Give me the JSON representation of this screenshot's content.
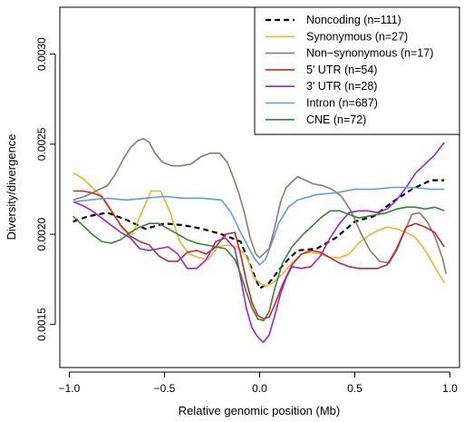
{
  "chart_data": {
    "type": "line",
    "title": "",
    "xlabel": "Relative genomic position (Mb)",
    "ylabel": "Diversity/divergence",
    "xlim": [
      -1.05,
      1.05
    ],
    "ylim": [
      0.00126,
      0.00326
    ],
    "xticks": [
      -1.0,
      -0.5,
      0.0,
      0.5,
      1.0
    ],
    "xtick_labels": [
      "−1.0",
      "−0.5",
      "0.0",
      "0.5",
      "1.0"
    ],
    "yticks": [
      0.0015,
      0.002,
      0.0025,
      0.003
    ],
    "ytick_labels": [
      "0.0015",
      "0.0020",
      "0.0025",
      "0.0030"
    ],
    "grid": false,
    "legend_position": "top-right",
    "series": [
      {
        "name": "Noncoding (n=111)",
        "color": "#000000",
        "dashed": true,
        "x": [
          -0.98,
          -0.9,
          -0.8,
          -0.7,
          -0.6,
          -0.5,
          -0.4,
          -0.3,
          -0.2,
          -0.1,
          -0.05,
          0.0,
          0.05,
          0.1,
          0.15,
          0.2,
          0.3,
          0.4,
          0.5,
          0.6,
          0.7,
          0.8,
          0.9,
          0.97
        ],
        "y": [
          0.00207,
          0.0021,
          0.00212,
          0.00208,
          0.00203,
          0.00206,
          0.00205,
          0.00203,
          0.002,
          0.00196,
          0.00183,
          0.0017,
          0.00173,
          0.0018,
          0.00186,
          0.00191,
          0.00192,
          0.00198,
          0.00207,
          0.0021,
          0.00218,
          0.00225,
          0.0023,
          0.0023
        ]
      },
      {
        "name": "Synonymous (n=27)",
        "color": "#f2b32a",
        "dashed": false,
        "x": [
          -0.98,
          -0.93,
          -0.88,
          -0.82,
          -0.77,
          -0.72,
          -0.67,
          -0.62,
          -0.57,
          -0.52,
          -0.47,
          -0.42,
          -0.37,
          -0.32,
          -0.27,
          -0.22,
          -0.17,
          -0.12,
          -0.07,
          -0.03,
          0.0,
          0.03,
          0.07,
          0.12,
          0.17,
          0.22,
          0.27,
          0.32,
          0.37,
          0.42,
          0.47,
          0.52,
          0.57,
          0.62,
          0.67,
          0.72,
          0.77,
          0.82,
          0.87,
          0.92,
          0.97
        ],
        "y": [
          0.00234,
          0.00231,
          0.00226,
          0.0022,
          0.00212,
          0.00203,
          0.002,
          0.00212,
          0.00224,
          0.00224,
          0.00212,
          0.00196,
          0.00189,
          0.00187,
          0.00186,
          0.00193,
          0.00194,
          0.00193,
          0.00188,
          0.00176,
          0.00173,
          0.00171,
          0.00173,
          0.00178,
          0.00184,
          0.00189,
          0.0019,
          0.00189,
          0.00187,
          0.00187,
          0.00189,
          0.00195,
          0.00199,
          0.00202,
          0.00204,
          0.00203,
          0.00201,
          0.00198,
          0.00191,
          0.00182,
          0.00173
        ]
      },
      {
        "name": "Non−synonymous (n=17)",
        "color": "#8c7b6b",
        "dashed": false,
        "x": [
          -0.98,
          -0.92,
          -0.86,
          -0.8,
          -0.76,
          -0.72,
          -0.68,
          -0.64,
          -0.61,
          -0.58,
          -0.55,
          -0.51,
          -0.46,
          -0.41,
          -0.36,
          -0.31,
          -0.26,
          -0.21,
          -0.17,
          -0.14,
          -0.11,
          -0.08,
          -0.05,
          -0.02,
          0.0,
          0.02,
          0.05,
          0.08,
          0.11,
          0.14,
          0.17,
          0.2,
          0.24,
          0.28,
          0.33,
          0.38,
          0.43,
          0.48,
          0.53,
          0.58,
          0.63,
          0.68,
          0.72,
          0.76,
          0.8,
          0.84,
          0.88,
          0.92,
          0.96,
          0.98
        ],
        "y": [
          0.00219,
          0.00221,
          0.00224,
          0.00227,
          0.00233,
          0.00241,
          0.00248,
          0.00252,
          0.00253,
          0.00251,
          0.00245,
          0.0024,
          0.00238,
          0.00238,
          0.00239,
          0.00243,
          0.00245,
          0.00245,
          0.0024,
          0.00232,
          0.00223,
          0.00212,
          0.00198,
          0.00189,
          0.00187,
          0.00189,
          0.00192,
          0.00204,
          0.00218,
          0.00226,
          0.00229,
          0.00232,
          0.0023,
          0.00228,
          0.00227,
          0.00225,
          0.00221,
          0.00213,
          0.00201,
          0.00191,
          0.00185,
          0.00184,
          0.00191,
          0.00201,
          0.00211,
          0.00212,
          0.00207,
          0.00199,
          0.00187,
          0.00178
        ]
      },
      {
        "name": "5' UTR (n=54)",
        "color": "#c4282a",
        "dashed": false,
        "x": [
          -0.98,
          -0.93,
          -0.88,
          -0.83,
          -0.78,
          -0.73,
          -0.68,
          -0.63,
          -0.58,
          -0.53,
          -0.48,
          -0.43,
          -0.38,
          -0.33,
          -0.28,
          -0.23,
          -0.18,
          -0.13,
          -0.1,
          -0.07,
          -0.04,
          -0.01,
          0.02,
          0.05,
          0.08,
          0.12,
          0.17,
          0.22,
          0.27,
          0.32,
          0.37,
          0.42,
          0.47,
          0.52,
          0.57,
          0.62,
          0.67,
          0.72,
          0.77,
          0.82,
          0.87,
          0.92,
          0.97
        ],
        "y": [
          0.00224,
          0.00224,
          0.00223,
          0.00221,
          0.00213,
          0.00205,
          0.00199,
          0.00196,
          0.00194,
          0.00188,
          0.00185,
          0.00185,
          0.0019,
          0.00191,
          0.00189,
          0.00193,
          0.002,
          0.00201,
          0.00189,
          0.00174,
          0.00162,
          0.00155,
          0.00153,
          0.00154,
          0.00161,
          0.00172,
          0.00183,
          0.00189,
          0.00191,
          0.0019,
          0.00187,
          0.00184,
          0.00182,
          0.00181,
          0.00181,
          0.00181,
          0.00183,
          0.00192,
          0.00204,
          0.00206,
          0.00204,
          0.00201,
          0.00193
        ]
      },
      {
        "name": "3' UTR (n=28)",
        "color": "#a21fd6",
        "dashed": false,
        "x": [
          -0.98,
          -0.93,
          -0.88,
          -0.83,
          -0.78,
          -0.73,
          -0.68,
          -0.63,
          -0.58,
          -0.53,
          -0.48,
          -0.43,
          -0.38,
          -0.33,
          -0.28,
          -0.23,
          -0.18,
          -0.13,
          -0.1,
          -0.07,
          -0.04,
          -0.01,
          0.02,
          0.05,
          0.08,
          0.11,
          0.14,
          0.17,
          0.22,
          0.27,
          0.32,
          0.37,
          0.42,
          0.47,
          0.52,
          0.57,
          0.62,
          0.67,
          0.72,
          0.77,
          0.82,
          0.87,
          0.92,
          0.97
        ],
        "y": [
          0.00218,
          0.00216,
          0.00213,
          0.00209,
          0.00205,
          0.00201,
          0.00198,
          0.00192,
          0.00191,
          0.00192,
          0.00193,
          0.00189,
          0.00181,
          0.00181,
          0.00186,
          0.00196,
          0.00198,
          0.00192,
          0.00176,
          0.00159,
          0.00148,
          0.00143,
          0.0014,
          0.00144,
          0.00155,
          0.00167,
          0.00176,
          0.00182,
          0.00181,
          0.00182,
          0.00188,
          0.00198,
          0.00206,
          0.00212,
          0.00213,
          0.00213,
          0.00212,
          0.00214,
          0.00219,
          0.00226,
          0.00234,
          0.00239,
          0.00244,
          0.00251
        ]
      },
      {
        "name": "Intron (n=687)",
        "color": "#5f9be0",
        "dashed": false,
        "x": [
          -0.98,
          -0.9,
          -0.8,
          -0.7,
          -0.6,
          -0.5,
          -0.4,
          -0.3,
          -0.2,
          -0.15,
          -0.1,
          -0.06,
          -0.03,
          0.0,
          0.03,
          0.06,
          0.1,
          0.15,
          0.2,
          0.3,
          0.4,
          0.5,
          0.6,
          0.7,
          0.8,
          0.9,
          0.97
        ],
        "y": [
          0.00218,
          0.00219,
          0.0022,
          0.00219,
          0.0022,
          0.00221,
          0.0022,
          0.0022,
          0.00219,
          0.00212,
          0.00201,
          0.00193,
          0.00187,
          0.00183,
          0.00186,
          0.00194,
          0.00206,
          0.00215,
          0.00219,
          0.00222,
          0.00223,
          0.00225,
          0.00225,
          0.00226,
          0.00226,
          0.00225,
          0.00225
        ]
      },
      {
        "name": "CNE (n=72)",
        "color": "#2c8a2c",
        "dashed": false,
        "x": [
          -0.98,
          -0.93,
          -0.88,
          -0.83,
          -0.78,
          -0.73,
          -0.68,
          -0.63,
          -0.58,
          -0.53,
          -0.48,
          -0.43,
          -0.38,
          -0.33,
          -0.28,
          -0.23,
          -0.18,
          -0.13,
          -0.1,
          -0.07,
          -0.04,
          -0.01,
          0.02,
          0.05,
          0.08,
          0.12,
          0.17,
          0.22,
          0.27,
          0.32,
          0.37,
          0.42,
          0.47,
          0.52,
          0.57,
          0.62,
          0.67,
          0.72,
          0.77,
          0.82,
          0.87,
          0.92,
          0.97
        ],
        "y": [
          0.0021,
          0.00205,
          0.002,
          0.00196,
          0.00195,
          0.00197,
          0.00201,
          0.00204,
          0.00206,
          0.00206,
          0.00203,
          0.002,
          0.00197,
          0.00195,
          0.00194,
          0.00193,
          0.00192,
          0.00186,
          0.00178,
          0.00168,
          0.00159,
          0.00153,
          0.00152,
          0.00157,
          0.0017,
          0.00184,
          0.00193,
          0.00199,
          0.00204,
          0.00209,
          0.00213,
          0.00213,
          0.00211,
          0.00209,
          0.0021,
          0.00211,
          0.00212,
          0.00214,
          0.00215,
          0.00215,
          0.00214,
          0.00215,
          0.00213
        ]
      }
    ]
  }
}
